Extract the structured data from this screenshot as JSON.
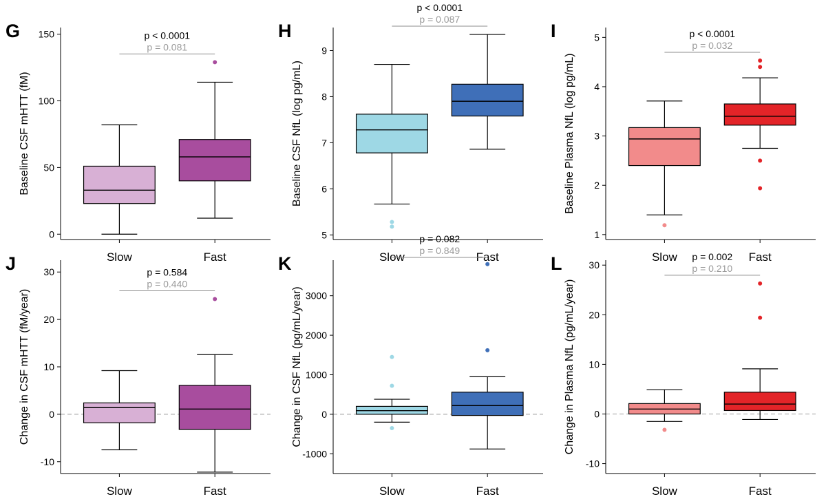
{
  "chart_data": [
    {
      "letter": "G",
      "type": "box",
      "ylabel": "Baseline CSF mHTT (fM)",
      "ylim": [
        -4,
        155
      ],
      "ticks": [
        0,
        50,
        100,
        150
      ],
      "categories": [
        "Slow",
        "Fast"
      ],
      "colors": [
        "#d8b0d5",
        "#a84d9e"
      ],
      "p_value": "p < 0.0001",
      "p_value_secondary": "p = 0.081",
      "zero_line": false,
      "boxes": [
        {
          "name": "Slow",
          "min": 0,
          "q1": 23,
          "median": 33,
          "q3": 51,
          "max": 82,
          "outliers": []
        },
        {
          "name": "Fast",
          "min": 12,
          "q1": 40,
          "median": 58,
          "q3": 71,
          "max": 114,
          "outliers": [
            129
          ]
        }
      ]
    },
    {
      "letter": "H",
      "type": "box",
      "ylabel": "Baseline CSF NfL (log pg/mL)",
      "ylim": [
        4.9,
        9.5
      ],
      "ticks": [
        5,
        6,
        7,
        8,
        9
      ],
      "categories": [
        "Slow",
        "Fast"
      ],
      "colors": [
        "#9ed8e5",
        "#3f6fb8"
      ],
      "p_value": "p < 0.0001",
      "p_value_secondary": "p = 0.087",
      "zero_line": false,
      "boxes": [
        {
          "name": "Slow",
          "min": 5.67,
          "q1": 6.78,
          "median": 7.28,
          "q3": 7.62,
          "max": 8.7,
          "outliers": [
            5.28,
            5.18
          ]
        },
        {
          "name": "Fast",
          "min": 6.86,
          "q1": 7.58,
          "median": 7.9,
          "q3": 8.27,
          "max": 9.35,
          "outliers": []
        }
      ]
    },
    {
      "letter": "I",
      "type": "box",
      "ylabel": "Baseline Plasma NfL (log pg/mL)",
      "ylim": [
        0.9,
        5.2
      ],
      "ticks": [
        1,
        2,
        3,
        4,
        5
      ],
      "categories": [
        "Slow",
        "Fast"
      ],
      "colors": [
        "#f28b8b",
        "#e32428"
      ],
      "p_value": "p < 0.0001",
      "p_value_secondary": "p = 0.032",
      "zero_line": false,
      "boxes": [
        {
          "name": "Slow",
          "min": 1.4,
          "q1": 2.4,
          "median": 2.94,
          "q3": 3.17,
          "max": 3.71,
          "outliers": [
            1.19
          ]
        },
        {
          "name": "Fast",
          "min": 2.75,
          "q1": 3.22,
          "median": 3.4,
          "q3": 3.65,
          "max": 4.18,
          "outliers": [
            4.53,
            4.4,
            2.5,
            1.94
          ]
        }
      ]
    },
    {
      "letter": "J",
      "type": "box",
      "ylabel": "Change in CSF mHTT (fM/year)",
      "ylim": [
        -12.5,
        32.5
      ],
      "ticks": [
        -10,
        0,
        10,
        20,
        30
      ],
      "categories": [
        "Slow",
        "Fast"
      ],
      "colors": [
        "#d8b0d5",
        "#a84d9e"
      ],
      "p_value": "p = 0.584",
      "p_value_secondary": "p = 0.440",
      "zero_line": true,
      "boxes": [
        {
          "name": "Slow",
          "min": -7.5,
          "q1": -1.8,
          "median": 1.4,
          "q3": 2.4,
          "max": 9.2,
          "outliers": []
        },
        {
          "name": "Fast",
          "min": -12.2,
          "q1": -3.2,
          "median": 1.1,
          "q3": 6.1,
          "max": 12.6,
          "outliers": [
            24.3
          ]
        }
      ]
    },
    {
      "letter": "K",
      "type": "box",
      "ylabel": "Change in CSF NfL (pg/mL/year)",
      "ylim": [
        -1500,
        3900
      ],
      "ticks": [
        -1000,
        0,
        1000,
        2000,
        3000
      ],
      "categories": [
        "Slow",
        "Fast"
      ],
      "colors": [
        "#9ed8e5",
        "#3f6fb8"
      ],
      "p_value": "p = 0.082",
      "p_value_secondary": "p = 0.849",
      "zero_line": true,
      "boxes": [
        {
          "name": "Slow",
          "min": -200,
          "q1": 0,
          "median": 90,
          "q3": 200,
          "max": 380,
          "outliers": [
            1450,
            720,
            -350
          ]
        },
        {
          "name": "Fast",
          "min": -880,
          "q1": -30,
          "median": 220,
          "q3": 560,
          "max": 950,
          "outliers": [
            3800,
            1620
          ]
        }
      ]
    },
    {
      "letter": "L",
      "type": "box",
      "ylabel": "Change in Plasma NfL (pg/mL/year)",
      "ylim": [
        -12,
        31
      ],
      "ticks": [
        -10,
        0,
        10,
        20,
        30
      ],
      "categories": [
        "Slow",
        "Fast"
      ],
      "colors": [
        "#f28b8b",
        "#e32428"
      ],
      "p_value": "p = 0.002",
      "p_value_secondary": "p = 0.210",
      "zero_line": true,
      "boxes": [
        {
          "name": "Slow",
          "min": -1.5,
          "q1": 0,
          "median": 1,
          "q3": 2.1,
          "max": 4.9,
          "outliers": [
            -3.2
          ]
        },
        {
          "name": "Fast",
          "min": -1.1,
          "q1": 0.7,
          "median": 2,
          "q3": 4.4,
          "max": 9.1,
          "outliers": [
            26.3,
            19.4
          ]
        }
      ]
    }
  ]
}
